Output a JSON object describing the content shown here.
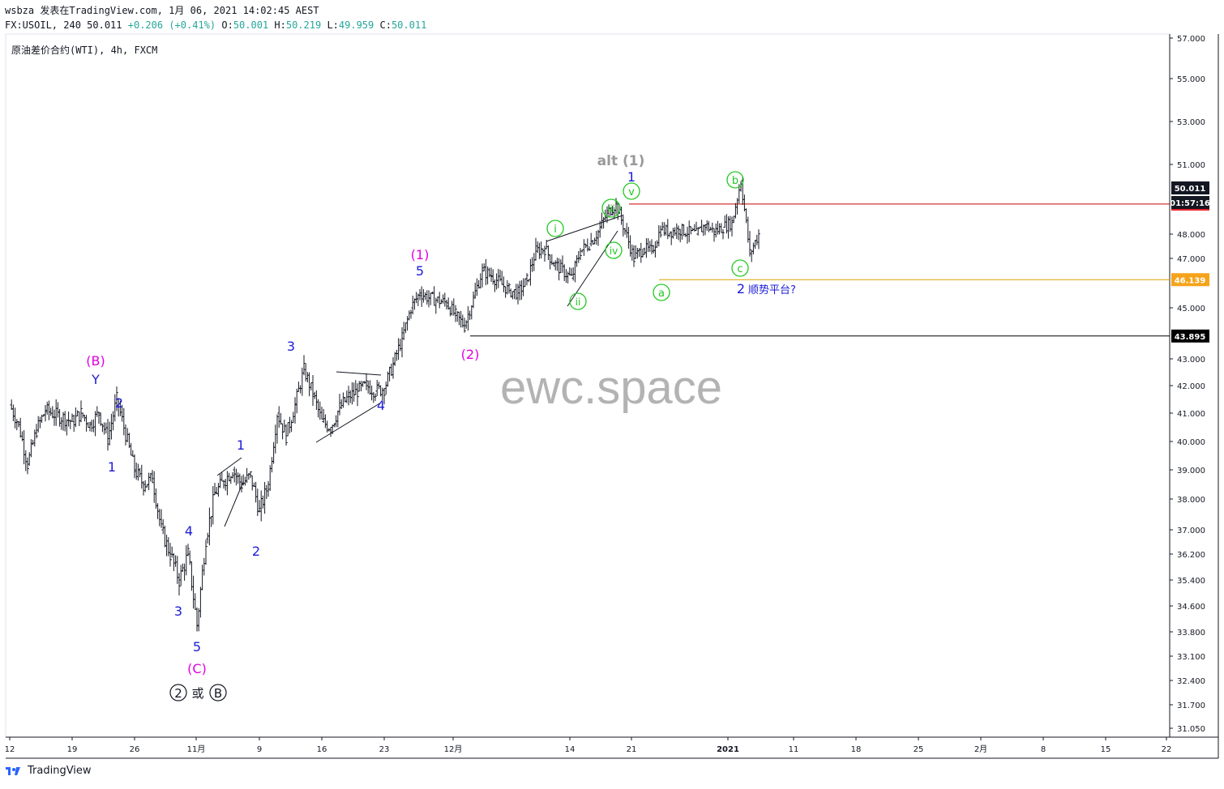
{
  "header": {
    "line1": "wsbza 发表在TradingView.com, 1月 06, 2021 14:02:45 AEST",
    "symbol": "FX:USOIL, 240",
    "last": "50.011",
    "change": "+0.206 (+0.41%)",
    "open_label": "O:",
    "open": "50.001",
    "high_label": "H:",
    "high": "50.219",
    "low_label": "L:",
    "low": "49.959",
    "close_label": "C:",
    "close": "50.011"
  },
  "chart_title": "原油差价合约(WTI), 4h, FXCM",
  "watermark": "ewc.space",
  "footer": {
    "brand": "TradingView"
  },
  "colors": {
    "blue": "#1c1cd8",
    "magenta": "#e000e0",
    "green": "#1fc81f",
    "grey": "#999999",
    "red_line": "#cc0000",
    "orange_line": "#d9a400",
    "black_line": "#000000"
  },
  "chart_data": {
    "type": "candlestick",
    "title": "原油差价合约(WTI), 4h, FXCM",
    "y_axis": {
      "scale": "log",
      "ticks": [
        "57.000",
        "55.000",
        "53.000",
        "51.000",
        "48.000",
        "47.000",
        "45.000",
        "43.000",
        "42.000",
        "41.000",
        "40.000",
        "39.000",
        "38.000",
        "37.000",
        "36.200",
        "35.400",
        "34.600",
        "33.800",
        "33.100",
        "32.400",
        "31.700",
        "31.050"
      ]
    },
    "x_axis": {
      "ticks": [
        "12",
        "19",
        "26",
        "11月",
        "9",
        "16",
        "23",
        "12月",
        "14",
        "21",
        "2021",
        "11",
        "18",
        "25",
        "2月",
        "8",
        "15",
        "22"
      ]
    },
    "price_path": [
      [
        "10-12",
        41.3
      ],
      [
        "10-13",
        40.6
      ],
      [
        "10-14",
        39.2
      ],
      [
        "10-15",
        40.4
      ],
      [
        "10-16",
        41.1
      ],
      [
        "10-19",
        40.7
      ],
      [
        "10-20",
        41.0
      ],
      [
        "10-21",
        40.6
      ],
      [
        "10-22",
        41.0
      ],
      [
        "10-23",
        40.1
      ],
      [
        "10-24",
        41.5
      ],
      [
        "10-26",
        39.0
      ],
      [
        "10-27",
        38.5
      ],
      [
        "10-28",
        38.7
      ],
      [
        "10-29",
        37.0
      ],
      [
        "10-30",
        36.2
      ],
      [
        "10-31",
        35.4
      ],
      [
        "11-01",
        36.2
      ],
      [
        "11-02",
        34.0
      ],
      [
        "11-03",
        36.7
      ],
      [
        "11-04",
        38.2
      ],
      [
        "11-05",
        38.6
      ],
      [
        "11-06",
        39.0
      ],
      [
        "11-07",
        38.5
      ],
      [
        "11-08",
        38.8
      ],
      [
        "11-09",
        37.6
      ],
      [
        "11-10",
        38.5
      ],
      [
        "11-11",
        41.0
      ],
      [
        "11-12",
        40.2
      ],
      [
        "11-13",
        41.3
      ],
      [
        "11-14",
        42.6
      ],
      [
        "11-15",
        41.7
      ],
      [
        "11-16",
        40.7
      ],
      [
        "11-17",
        40.5
      ],
      [
        "11-18",
        41.2
      ],
      [
        "11-19",
        41.6
      ],
      [
        "11-20",
        41.8
      ],
      [
        "11-21",
        42.0
      ],
      [
        "11-22",
        41.8
      ],
      [
        "11-23",
        41.9
      ],
      [
        "11-24",
        42.8
      ],
      [
        "11-25",
        43.8
      ],
      [
        "11-26",
        45.0
      ],
      [
        "11-27",
        45.6
      ],
      [
        "11-28",
        45.4
      ],
      [
        "11-30",
        45.2
      ],
      [
        "12-01",
        44.7
      ],
      [
        "12-02",
        44.3
      ],
      [
        "12-03",
        45.4
      ],
      [
        "12-04",
        46.5
      ],
      [
        "12-05",
        46.3
      ],
      [
        "12-07",
        45.7
      ],
      [
        "12-08",
        45.6
      ],
      [
        "12-09",
        46.1
      ],
      [
        "12-10",
        47.3
      ],
      [
        "12-11",
        47.4
      ],
      [
        "12-12",
        46.8
      ],
      [
        "12-14",
        46.2
      ],
      [
        "12-15",
        47.3
      ],
      [
        "12-16",
        47.6
      ],
      [
        "12-17",
        48.1
      ],
      [
        "12-18",
        48.9
      ],
      [
        "12-19",
        49.3
      ],
      [
        "12-21",
        47.0
      ],
      [
        "12-22",
        47.4
      ],
      [
        "12-23",
        47.3
      ],
      [
        "12-24",
        48.2
      ],
      [
        "12-25",
        48.1
      ],
      [
        "12-26",
        48.2
      ],
      [
        "12-28",
        48.0
      ],
      [
        "12-29",
        48.4
      ],
      [
        "12-30",
        48.1
      ],
      [
        "12-31",
        48.3
      ],
      [
        "01-01",
        48.5
      ],
      [
        "01-02",
        50.3
      ],
      [
        "01-03",
        47.2
      ],
      [
        "01-04",
        48.0
      ],
      [
        "01-05",
        49.8
      ],
      [
        "01-06",
        50.0
      ]
    ],
    "horizontal_levels": [
      {
        "price": 49.293,
        "label": "49.293",
        "color": "#cc0000"
      },
      {
        "price": 46.139,
        "label": "46.139",
        "color": "#d9a400"
      },
      {
        "price": 43.895,
        "label": "43.895",
        "color": "#000000"
      }
    ],
    "price_badges": [
      {
        "label": "50.011",
        "sub": "01:57:16"
      }
    ],
    "annotations": {
      "blue": [
        "Y",
        "2",
        "1",
        "1",
        "2",
        "3",
        "4",
        "5",
        "3",
        "4",
        "5",
        "1",
        "2",
        "顺势平台?"
      ],
      "magenta": [
        "(B)",
        "(C)",
        "(1)",
        "(2)"
      ],
      "grey": [
        "alt (1)"
      ],
      "green_circled": [
        "i",
        "ii",
        "iii",
        "iv",
        "v",
        "a",
        "b",
        "c"
      ],
      "black_circled": [
        "2",
        "B"
      ],
      "black_text": [
        "或"
      ]
    }
  }
}
